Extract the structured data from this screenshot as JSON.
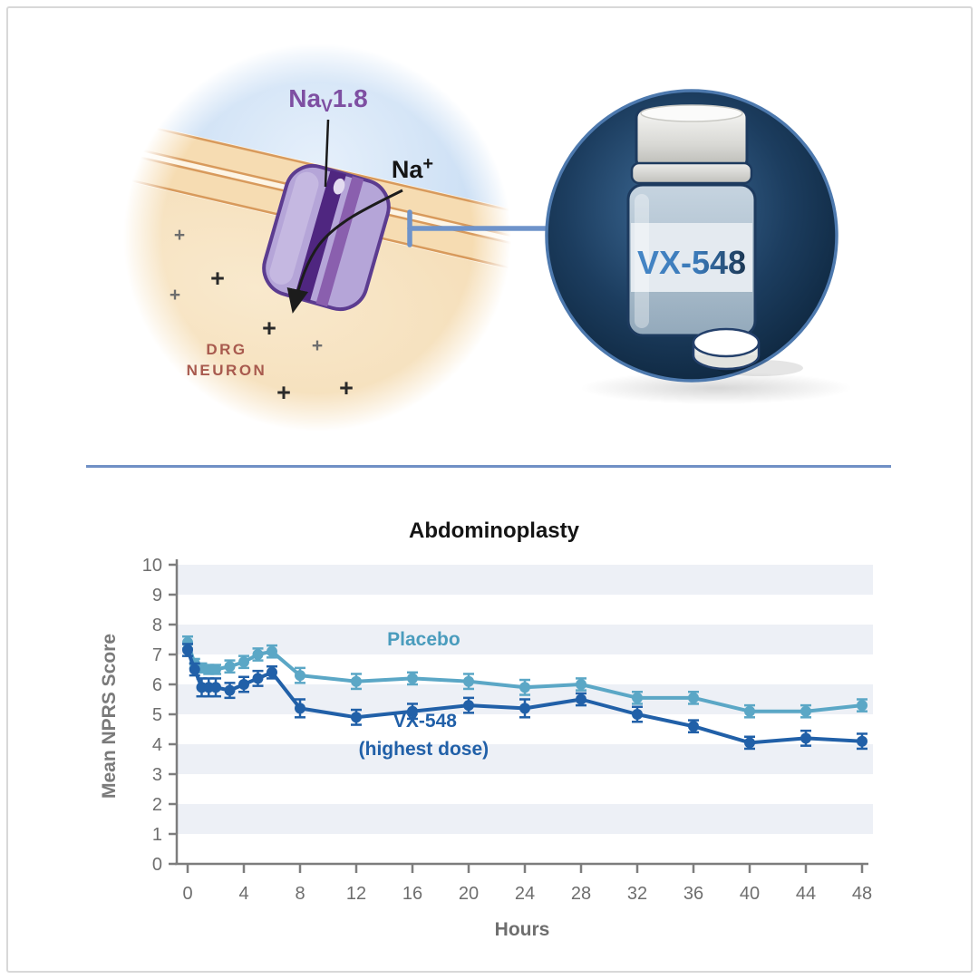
{
  "illustration": {
    "channel_label": {
      "pre": "Na",
      "sub": "V",
      "post": "1.8"
    },
    "ion_label": {
      "pre": "Na",
      "sup": "+"
    },
    "neuron_label_line1": "DRG",
    "neuron_label_line2": "NEURON",
    "bottle_label": "VX-548",
    "plus_glyph": "+",
    "colors": {
      "channel_label": "#7e4fa2",
      "neuron_label": "#a85a4e",
      "inhibitor_line": "#6e93ca",
      "extracellular": "#c7dbf3",
      "cytoplasm": "#f6dfba",
      "membrane": "#f6dcb2",
      "channel_body": "#b5a5d8"
    }
  },
  "chart_data": {
    "type": "line",
    "title": "Abdominoplasty",
    "xlabel": "Hours",
    "ylabel": "Mean NPRS Score",
    "xlim": [
      0,
      48
    ],
    "ylim": [
      0,
      10
    ],
    "x_ticks": [
      0,
      4,
      8,
      12,
      16,
      20,
      24,
      28,
      32,
      36,
      40,
      44,
      48
    ],
    "y_ticks": [
      0,
      1,
      2,
      3,
      4,
      5,
      6,
      7,
      8,
      9,
      10
    ],
    "grid": "horizontal-bands",
    "band_color": "#edf0f6",
    "axis_color": "#7d7d7d",
    "tick_label_color": "#6e6e6e",
    "x": [
      0,
      0.5,
      1,
      1.5,
      2,
      3,
      4,
      5,
      6,
      8,
      12,
      16,
      20,
      24,
      28,
      32,
      36,
      40,
      44,
      48
    ],
    "series": [
      {
        "name": "Placebo",
        "color": "#5ba7c6",
        "values": [
          7.4,
          6.7,
          6.55,
          6.5,
          6.5,
          6.6,
          6.75,
          7.0,
          7.1,
          6.3,
          6.1,
          6.2,
          6.1,
          5.9,
          6.0,
          5.55,
          5.55,
          5.1,
          5.1,
          5.3
        ],
        "errors": [
          0.2,
          0.15,
          0.15,
          0.15,
          0.15,
          0.2,
          0.2,
          0.2,
          0.2,
          0.25,
          0.25,
          0.2,
          0.25,
          0.25,
          0.2,
          0.2,
          0.2,
          0.2,
          0.2,
          0.2
        ]
      },
      {
        "name": "VX-548 (highest dose)",
        "color": "#2160a8",
        "values": [
          7.15,
          6.5,
          5.9,
          5.9,
          5.9,
          5.8,
          6.0,
          6.2,
          6.4,
          5.2,
          4.9,
          5.1,
          5.3,
          5.2,
          5.5,
          5.0,
          4.6,
          4.05,
          4.2,
          4.1
        ],
        "errors": [
          0.2,
          0.2,
          0.3,
          0.3,
          0.3,
          0.25,
          0.25,
          0.25,
          0.2,
          0.3,
          0.25,
          0.25,
          0.25,
          0.3,
          0.2,
          0.25,
          0.2,
          0.2,
          0.25,
          0.25
        ]
      }
    ],
    "annotations": [
      {
        "text": "Placebo",
        "x": 16.8,
        "y": 7.3,
        "color": "#4a9cbd"
      },
      {
        "text": "VX-548",
        "x": 16.9,
        "y": 4.58,
        "color": "#2160a8"
      },
      {
        "text": "(highest dose)",
        "x": 16.8,
        "y": 3.64,
        "color": "#2160a8"
      }
    ],
    "legend_position": "inline-annotations"
  }
}
